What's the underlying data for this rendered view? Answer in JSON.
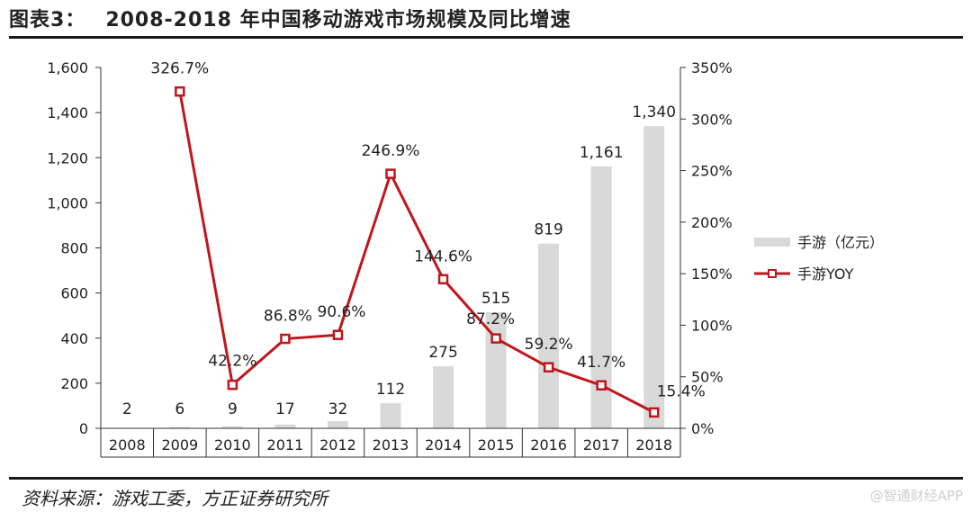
{
  "figure": {
    "title_prefix": "图表3：",
    "title_text": "2008-2018 年中国移动游戏市场规模及同比增速",
    "source": "资料来源：游戏工委，方正证券研究所",
    "watermark": "@智通财经APP"
  },
  "chart_data": {
    "type": "bar",
    "categories": [
      "2008",
      "2009",
      "2010",
      "2011",
      "2012",
      "2013",
      "2014",
      "2015",
      "2016",
      "2017",
      "2018"
    ],
    "series": [
      {
        "name": "手游（亿元）",
        "kind": "bar",
        "axis": "left",
        "color": "#d9d9d9",
        "values": [
          2,
          6,
          9,
          17,
          32,
          112,
          275,
          515,
          819,
          1161,
          1340
        ],
        "labels": [
          "2",
          "6",
          "9",
          "17",
          "32",
          "112",
          "275",
          "515",
          "819",
          "1,161",
          "1,340"
        ]
      },
      {
        "name": "手游YOY",
        "kind": "line",
        "axis": "right",
        "color": "#c0161d",
        "values": [
          null,
          326.7,
          42.2,
          86.8,
          90.6,
          246.9,
          144.6,
          87.2,
          59.2,
          41.7,
          15.4
        ],
        "labels": [
          "",
          "326.7%",
          "42.2%",
          "86.8%",
          "90.6%",
          "246.9%",
          "144.6%",
          "87.2%",
          "59.2%",
          "41.7%",
          "15.4%"
        ]
      }
    ],
    "left_axis": {
      "ylim": [
        0,
        1600
      ],
      "ticks": [
        "0",
        "200",
        "400",
        "600",
        "800",
        "1,000",
        "1,200",
        "1,400",
        "1,600"
      ]
    },
    "right_axis": {
      "ylim": [
        0,
        350
      ],
      "ticks": [
        "0%",
        "50%",
        "100%",
        "150%",
        "200%",
        "250%",
        "300%",
        "350%"
      ]
    },
    "legend_position": "right"
  }
}
